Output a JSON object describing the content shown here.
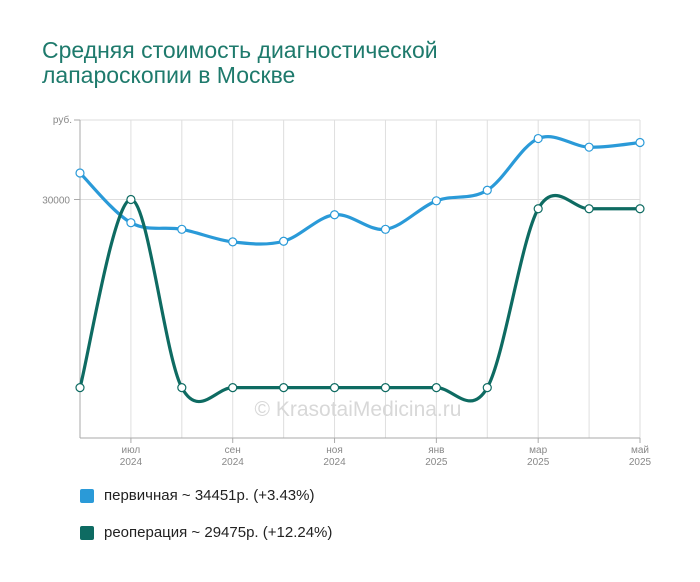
{
  "title_lines": [
    "Средняя стоимость диагностической",
    "лапароскопии в Москве"
  ],
  "watermark": "© KrasotaiMedicina.ru",
  "chart_data": {
    "type": "line",
    "ylabel": "руб.",
    "ylim": [
      12000,
      36000
    ],
    "yticks": [
      {
        "value": 30000,
        "label": "30000"
      }
    ],
    "x": [
      "2024-06",
      "2024-07",
      "2024-08",
      "2024-09",
      "2024-10",
      "2024-11",
      "2024-12",
      "2025-01",
      "2025-02",
      "2025-03",
      "2025-04",
      "2025-05"
    ],
    "xticks": [
      {
        "x": "2024-07",
        "month": "июл",
        "year": "2024"
      },
      {
        "x": "2024-09",
        "month": "сен",
        "year": "2024"
      },
      {
        "x": "2024-11",
        "month": "ноя",
        "year": "2024"
      },
      {
        "x": "2025-01",
        "month": "янв",
        "year": "2025"
      },
      {
        "x": "2025-03",
        "month": "мар",
        "year": "2025"
      },
      {
        "x": "2025-05",
        "month": "май",
        "year": "2025"
      }
    ],
    "grid": true,
    "series": [
      {
        "name": "первичная",
        "color": "#2a9ad8",
        "values": [
          32000,
          28250,
          27750,
          26800,
          26850,
          28850,
          27750,
          29900,
          30700,
          34600,
          33950,
          34300
        ],
        "legend": "первичная ~ 34451р. (+3.43%)"
      },
      {
        "name": "реоперация",
        "color": "#0e6b62",
        "values": [
          15800,
          30000,
          15800,
          15800,
          15800,
          15800,
          15800,
          15800,
          15800,
          29300,
          29300,
          29300
        ],
        "legend": "реоперация ~ 29475р. (+12.24%)"
      }
    ]
  }
}
